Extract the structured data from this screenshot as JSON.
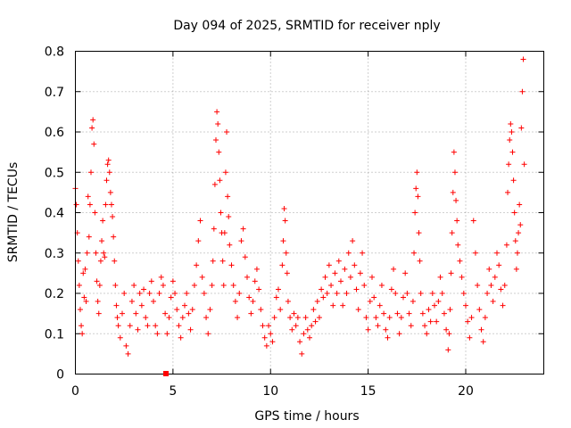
{
  "chart_data": {
    "type": "scatter",
    "title": "Day 094 of 2025, SRMTID for receiver nply",
    "xlabel": "GPS time / hours",
    "ylabel": "SRMTID / TECUs",
    "xlim": [
      0,
      24
    ],
    "ylim": [
      0,
      0.8
    ],
    "xticks": [
      0,
      5,
      10,
      15,
      20
    ],
    "yticks": [
      0,
      0.1,
      0.2,
      0.3,
      0.4,
      0.5,
      0.6,
      0.7,
      0.8
    ],
    "xtick_labels": [
      "0",
      "5",
      "10",
      "15",
      "20"
    ],
    "ytick_labels": [
      "0",
      "0.1",
      "0.2",
      "0.3",
      "0.4",
      "0.5",
      "0.6",
      "0.7",
      "0.8"
    ],
    "grid": true,
    "marker": "+",
    "color": "#ff0000",
    "series": [
      {
        "name": "SRMTID",
        "points": [
          [
            0.0,
            0.46
          ],
          [
            0.05,
            0.42
          ],
          [
            0.1,
            0.35
          ],
          [
            0.15,
            0.28
          ],
          [
            0.2,
            0.22
          ],
          [
            0.25,
            0.16
          ],
          [
            0.3,
            0.12
          ],
          [
            0.35,
            0.1
          ],
          [
            0.4,
            0.25
          ],
          [
            0.45,
            0.19
          ],
          [
            0.5,
            0.26
          ],
          [
            0.55,
            0.18
          ],
          [
            0.6,
            0.3
          ],
          [
            0.65,
            0.44
          ],
          [
            0.7,
            0.34
          ],
          [
            0.75,
            0.42
          ],
          [
            0.8,
            0.5
          ],
          [
            0.85,
            0.61
          ],
          [
            0.9,
            0.63
          ],
          [
            0.95,
            0.57
          ],
          [
            1.0,
            0.4
          ],
          [
            1.05,
            0.3
          ],
          [
            1.1,
            0.23
          ],
          [
            1.15,
            0.18
          ],
          [
            1.2,
            0.15
          ],
          [
            1.25,
            0.22
          ],
          [
            1.3,
            0.28
          ],
          [
            1.35,
            0.33
          ],
          [
            1.4,
            0.38
          ],
          [
            1.45,
            0.3
          ],
          [
            1.5,
            0.29
          ],
          [
            1.55,
            0.42
          ],
          [
            1.6,
            0.48
          ],
          [
            1.65,
            0.52
          ],
          [
            1.7,
            0.53
          ],
          [
            1.75,
            0.5
          ],
          [
            1.8,
            0.45
          ],
          [
            1.85,
            0.42
          ],
          [
            1.9,
            0.39
          ],
          [
            1.95,
            0.34
          ],
          [
            2.0,
            0.28
          ],
          [
            2.05,
            0.22
          ],
          [
            2.1,
            0.17
          ],
          [
            2.15,
            0.14
          ],
          [
            2.2,
            0.12
          ],
          [
            2.3,
            0.09
          ],
          [
            2.4,
            0.15
          ],
          [
            2.5,
            0.2
          ],
          [
            2.6,
            0.07
          ],
          [
            2.7,
            0.05
          ],
          [
            2.8,
            0.12
          ],
          [
            2.9,
            0.18
          ],
          [
            3.0,
            0.22
          ],
          [
            3.1,
            0.15
          ],
          [
            3.2,
            0.11
          ],
          [
            3.3,
            0.2
          ],
          [
            3.4,
            0.17
          ],
          [
            3.5,
            0.21
          ],
          [
            3.6,
            0.14
          ],
          [
            3.7,
            0.12
          ],
          [
            3.8,
            0.2
          ],
          [
            3.9,
            0.23
          ],
          [
            4.0,
            0.18
          ],
          [
            4.1,
            0.12
          ],
          [
            4.2,
            0.1
          ],
          [
            4.3,
            0.2
          ],
          [
            4.4,
            0.24
          ],
          [
            4.5,
            0.22
          ],
          [
            4.6,
            0.15
          ],
          [
            4.7,
            0.1
          ],
          [
            4.8,
            0.14
          ],
          [
            4.9,
            0.19
          ],
          [
            5.0,
            0.23
          ],
          [
            5.1,
            0.2
          ],
          [
            5.2,
            0.16
          ],
          [
            5.3,
            0.12
          ],
          [
            5.4,
            0.09
          ],
          [
            5.5,
            0.14
          ],
          [
            5.6,
            0.17
          ],
          [
            5.7,
            0.2
          ],
          [
            5.8,
            0.15
          ],
          [
            5.9,
            0.11
          ],
          [
            6.0,
            0.16
          ],
          [
            6.1,
            0.22
          ],
          [
            6.2,
            0.27
          ],
          [
            6.3,
            0.33
          ],
          [
            6.4,
            0.38
          ],
          [
            6.5,
            0.24
          ],
          [
            6.6,
            0.2
          ],
          [
            6.7,
            0.14
          ],
          [
            6.8,
            0.1
          ],
          [
            6.9,
            0.16
          ],
          [
            7.0,
            0.22
          ],
          [
            7.05,
            0.28
          ],
          [
            7.1,
            0.36
          ],
          [
            7.15,
            0.47
          ],
          [
            7.2,
            0.58
          ],
          [
            7.25,
            0.65
          ],
          [
            7.3,
            0.62
          ],
          [
            7.35,
            0.55
          ],
          [
            7.4,
            0.48
          ],
          [
            7.45,
            0.4
          ],
          [
            7.5,
            0.35
          ],
          [
            7.55,
            0.28
          ],
          [
            7.6,
            0.22
          ],
          [
            7.65,
            0.35
          ],
          [
            7.7,
            0.5
          ],
          [
            7.75,
            0.6
          ],
          [
            7.8,
            0.44
          ],
          [
            7.85,
            0.39
          ],
          [
            7.9,
            0.32
          ],
          [
            8.0,
            0.27
          ],
          [
            8.1,
            0.22
          ],
          [
            8.2,
            0.18
          ],
          [
            8.3,
            0.14
          ],
          [
            8.4,
            0.2
          ],
          [
            8.5,
            0.33
          ],
          [
            8.6,
            0.36
          ],
          [
            8.7,
            0.29
          ],
          [
            8.8,
            0.24
          ],
          [
            8.9,
            0.19
          ],
          [
            9.0,
            0.15
          ],
          [
            9.1,
            0.18
          ],
          [
            9.2,
            0.23
          ],
          [
            9.3,
            0.26
          ],
          [
            9.4,
            0.21
          ],
          [
            9.5,
            0.16
          ],
          [
            9.6,
            0.12
          ],
          [
            9.7,
            0.09
          ],
          [
            9.8,
            0.07
          ],
          [
            9.9,
            0.12
          ],
          [
            10.0,
            0.1
          ],
          [
            10.1,
            0.08
          ],
          [
            10.2,
            0.14
          ],
          [
            10.3,
            0.19
          ],
          [
            10.4,
            0.21
          ],
          [
            10.5,
            0.16
          ],
          [
            10.6,
            0.27
          ],
          [
            10.65,
            0.33
          ],
          [
            10.7,
            0.41
          ],
          [
            10.75,
            0.38
          ],
          [
            10.8,
            0.3
          ],
          [
            10.85,
            0.25
          ],
          [
            10.9,
            0.18
          ],
          [
            11.0,
            0.14
          ],
          [
            11.1,
            0.11
          ],
          [
            11.2,
            0.15
          ],
          [
            11.3,
            0.12
          ],
          [
            11.4,
            0.14
          ],
          [
            11.5,
            0.08
          ],
          [
            11.6,
            0.05
          ],
          [
            11.7,
            0.1
          ],
          [
            11.8,
            0.14
          ],
          [
            11.9,
            0.11
          ],
          [
            12.0,
            0.09
          ],
          [
            12.1,
            0.12
          ],
          [
            12.2,
            0.16
          ],
          [
            12.3,
            0.13
          ],
          [
            12.4,
            0.18
          ],
          [
            12.5,
            0.14
          ],
          [
            12.6,
            0.21
          ],
          [
            12.7,
            0.19
          ],
          [
            12.8,
            0.24
          ],
          [
            12.9,
            0.2
          ],
          [
            13.0,
            0.27
          ],
          [
            13.1,
            0.22
          ],
          [
            13.2,
            0.17
          ],
          [
            13.3,
            0.25
          ],
          [
            13.4,
            0.2
          ],
          [
            13.5,
            0.28
          ],
          [
            13.6,
            0.23
          ],
          [
            13.7,
            0.17
          ],
          [
            13.8,
            0.26
          ],
          [
            13.9,
            0.2
          ],
          [
            14.0,
            0.3
          ],
          [
            14.1,
            0.24
          ],
          [
            14.2,
            0.33
          ],
          [
            14.3,
            0.27
          ],
          [
            14.4,
            0.21
          ],
          [
            14.5,
            0.16
          ],
          [
            14.6,
            0.25
          ],
          [
            14.7,
            0.3
          ],
          [
            14.8,
            0.22
          ],
          [
            14.9,
            0.14
          ],
          [
            15.0,
            0.11
          ],
          [
            15.1,
            0.18
          ],
          [
            15.2,
            0.24
          ],
          [
            15.3,
            0.19
          ],
          [
            15.4,
            0.14
          ],
          [
            15.5,
            0.12
          ],
          [
            15.6,
            0.17
          ],
          [
            15.7,
            0.22
          ],
          [
            15.8,
            0.15
          ],
          [
            15.9,
            0.11
          ],
          [
            16.0,
            0.09
          ],
          [
            16.1,
            0.14
          ],
          [
            16.2,
            0.21
          ],
          [
            16.3,
            0.26
          ],
          [
            16.4,
            0.2
          ],
          [
            16.5,
            0.15
          ],
          [
            16.6,
            0.1
          ],
          [
            16.7,
            0.14
          ],
          [
            16.8,
            0.19
          ],
          [
            16.9,
            0.25
          ],
          [
            17.0,
            0.2
          ],
          [
            17.1,
            0.15
          ],
          [
            17.2,
            0.12
          ],
          [
            17.3,
            0.18
          ],
          [
            17.35,
            0.3
          ],
          [
            17.4,
            0.4
          ],
          [
            17.45,
            0.46
          ],
          [
            17.5,
            0.5
          ],
          [
            17.55,
            0.44
          ],
          [
            17.6,
            0.35
          ],
          [
            17.65,
            0.28
          ],
          [
            17.7,
            0.2
          ],
          [
            17.8,
            0.15
          ],
          [
            17.9,
            0.12
          ],
          [
            18.0,
            0.1
          ],
          [
            18.1,
            0.16
          ],
          [
            18.2,
            0.13
          ],
          [
            18.3,
            0.2
          ],
          [
            18.4,
            0.17
          ],
          [
            18.5,
            0.13
          ],
          [
            18.6,
            0.18
          ],
          [
            18.7,
            0.24
          ],
          [
            18.8,
            0.2
          ],
          [
            18.9,
            0.15
          ],
          [
            19.0,
            0.11
          ],
          [
            19.1,
            0.06
          ],
          [
            19.15,
            0.1
          ],
          [
            19.2,
            0.16
          ],
          [
            19.25,
            0.25
          ],
          [
            19.3,
            0.35
          ],
          [
            19.35,
            0.45
          ],
          [
            19.4,
            0.55
          ],
          [
            19.45,
            0.5
          ],
          [
            19.5,
            0.43
          ],
          [
            19.55,
            0.38
          ],
          [
            19.6,
            0.32
          ],
          [
            19.7,
            0.28
          ],
          [
            19.8,
            0.24
          ],
          [
            19.9,
            0.2
          ],
          [
            20.0,
            0.17
          ],
          [
            20.1,
            0.13
          ],
          [
            20.2,
            0.09
          ],
          [
            20.3,
            0.14
          ],
          [
            20.4,
            0.38
          ],
          [
            20.5,
            0.3
          ],
          [
            20.6,
            0.22
          ],
          [
            20.7,
            0.16
          ],
          [
            20.8,
            0.11
          ],
          [
            20.9,
            0.08
          ],
          [
            21.0,
            0.14
          ],
          [
            21.1,
            0.2
          ],
          [
            21.2,
            0.26
          ],
          [
            21.3,
            0.22
          ],
          [
            21.4,
            0.18
          ],
          [
            21.5,
            0.24
          ],
          [
            21.6,
            0.3
          ],
          [
            21.7,
            0.27
          ],
          [
            21.8,
            0.21
          ],
          [
            21.9,
            0.17
          ],
          [
            22.0,
            0.22
          ],
          [
            22.1,
            0.32
          ],
          [
            22.15,
            0.45
          ],
          [
            22.2,
            0.52
          ],
          [
            22.25,
            0.58
          ],
          [
            22.3,
            0.62
          ],
          [
            22.35,
            0.6
          ],
          [
            22.4,
            0.55
          ],
          [
            22.45,
            0.48
          ],
          [
            22.5,
            0.4
          ],
          [
            22.55,
            0.33
          ],
          [
            22.6,
            0.26
          ],
          [
            22.65,
            0.3
          ],
          [
            22.7,
            0.35
          ],
          [
            22.75,
            0.42
          ],
          [
            22.8,
            0.37
          ],
          [
            22.85,
            0.61
          ],
          [
            22.9,
            0.7
          ],
          [
            22.95,
            0.78
          ],
          [
            23.0,
            0.52
          ]
        ]
      }
    ]
  }
}
